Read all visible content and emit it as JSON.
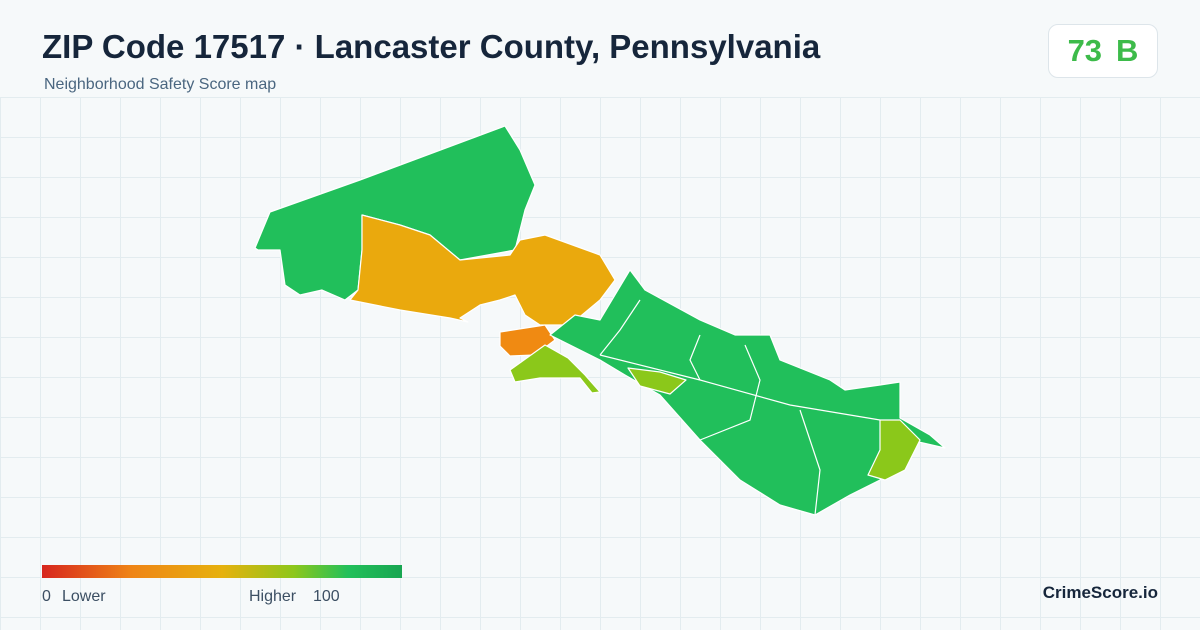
{
  "header": {
    "title": "ZIP Code 17517 · Lancaster County, Pennsylvania",
    "subtitle": "Neighborhood Safety Score map"
  },
  "score": {
    "value": 73,
    "grade": "B"
  },
  "legend": {
    "min": 0,
    "min_label": "Lower",
    "max_label": "Higher",
    "max": 100
  },
  "footer": {
    "brand": "CrimeScore.io"
  }
}
